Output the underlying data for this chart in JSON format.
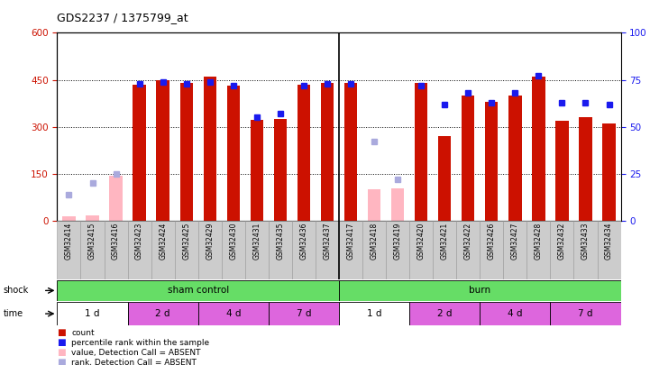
{
  "title": "GDS2237 / 1375799_at",
  "samples": [
    "GSM32414",
    "GSM32415",
    "GSM32416",
    "GSM32423",
    "GSM32424",
    "GSM32425",
    "GSM32429",
    "GSM32430",
    "GSM32431",
    "GSM32435",
    "GSM32436",
    "GSM32437",
    "GSM32417",
    "GSM32418",
    "GSM32419",
    "GSM32420",
    "GSM32421",
    "GSM32422",
    "GSM32426",
    "GSM32427",
    "GSM32428",
    "GSM32432",
    "GSM32433",
    "GSM32434"
  ],
  "count_present": [
    0,
    0,
    0,
    435,
    448,
    440,
    460,
    432,
    322,
    325,
    435,
    440,
    440,
    0,
    0,
    440,
    270,
    400,
    380,
    400,
    460,
    320,
    330,
    312
  ],
  "count_absent": [
    15,
    18,
    145,
    0,
    0,
    0,
    0,
    0,
    0,
    0,
    0,
    0,
    0,
    100,
    105,
    0,
    0,
    0,
    0,
    0,
    0,
    0,
    0,
    0
  ],
  "pct_present": [
    0,
    0,
    0,
    73,
    74,
    73,
    74,
    72,
    55,
    57,
    72,
    73,
    73,
    0,
    0,
    72,
    62,
    68,
    63,
    68,
    77,
    63,
    63,
    62
  ],
  "pct_absent": [
    14,
    20,
    25,
    0,
    0,
    0,
    0,
    0,
    0,
    0,
    0,
    0,
    0,
    42,
    22,
    0,
    0,
    0,
    0,
    0,
    0,
    0,
    0,
    0
  ],
  "ylim_left": [
    0,
    600
  ],
  "ylim_right": [
    0,
    100
  ],
  "yticks_left": [
    0,
    150,
    300,
    450,
    600
  ],
  "yticks_right": [
    0,
    25,
    50,
    75,
    100
  ],
  "bar_color_present": "#cc1100",
  "bar_color_absent": "#ffb6c1",
  "dot_color_present": "#1a1aee",
  "dot_color_absent": "#aaaadd",
  "shock_groups": [
    {
      "label": "sham control",
      "start": 0,
      "end": 12,
      "color": "#66dd66"
    },
    {
      "label": "burn",
      "start": 12,
      "end": 24,
      "color": "#66dd66"
    }
  ],
  "time_groups": [
    {
      "label": "1 d",
      "start": 0,
      "end": 3,
      "color": "#ffffff"
    },
    {
      "label": "2 d",
      "start": 3,
      "end": 6,
      "color": "#dd66dd"
    },
    {
      "label": "4 d",
      "start": 6,
      "end": 9,
      "color": "#dd66dd"
    },
    {
      "label": "7 d",
      "start": 9,
      "end": 12,
      "color": "#dd66dd"
    },
    {
      "label": "1 d",
      "start": 12,
      "end": 15,
      "color": "#ffffff"
    },
    {
      "label": "2 d",
      "start": 15,
      "end": 18,
      "color": "#dd66dd"
    },
    {
      "label": "4 d",
      "start": 18,
      "end": 21,
      "color": "#dd66dd"
    },
    {
      "label": "7 d",
      "start": 21,
      "end": 24,
      "color": "#dd66dd"
    }
  ],
  "legend": [
    {
      "color": "#cc1100",
      "label": "count"
    },
    {
      "color": "#1a1aee",
      "label": "percentile rank within the sample"
    },
    {
      "color": "#ffb6c1",
      "label": "value, Detection Call = ABSENT"
    },
    {
      "color": "#aaaadd",
      "label": "rank, Detection Call = ABSENT"
    }
  ],
  "separator_col": 12,
  "xlabel_bg": "#cccccc",
  "n_samples": 24
}
